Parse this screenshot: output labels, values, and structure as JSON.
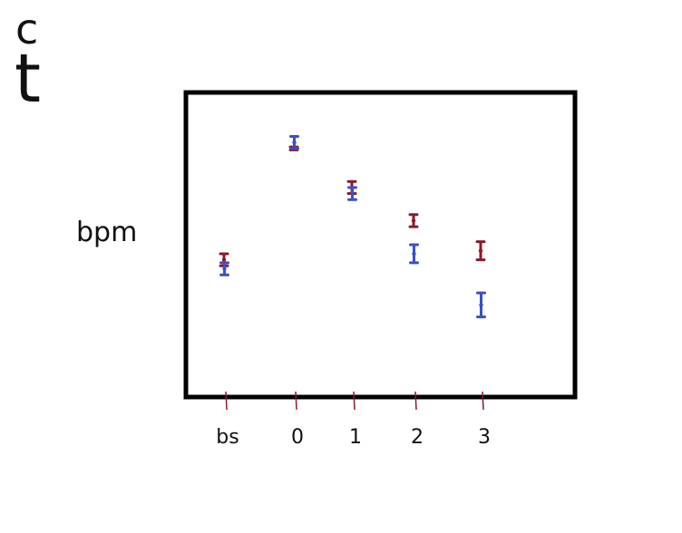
{
  "legend": {
    "items": [
      {
        "label": "c",
        "color": "#8b1a2b"
      },
      {
        "label": "t",
        "color": "#3a4fc9"
      }
    ],
    "placement": "top-left"
  },
  "chart_data": {
    "type": "scatter",
    "title": "",
    "xlabel": "",
    "ylabel": "bpm",
    "categories": [
      "bs",
      "0",
      "1",
      "2",
      "3"
    ],
    "y_tick_labels": [],
    "ylim": [
      0,
      100
    ],
    "grid": false,
    "legend_placement": "top-left",
    "error_bars": true,
    "series": [
      {
        "name": "c",
        "color": "#8b1a2b",
        "values": [
          45,
          82,
          69,
          58,
          48
        ],
        "err": [
          2,
          0.5,
          2,
          2,
          3
        ]
      },
      {
        "name": "t",
        "color": "#3a4fc9",
        "values": [
          42,
          84,
          67,
          47,
          30
        ],
        "err": [
          2,
          2,
          2,
          3,
          4
        ]
      }
    ]
  }
}
